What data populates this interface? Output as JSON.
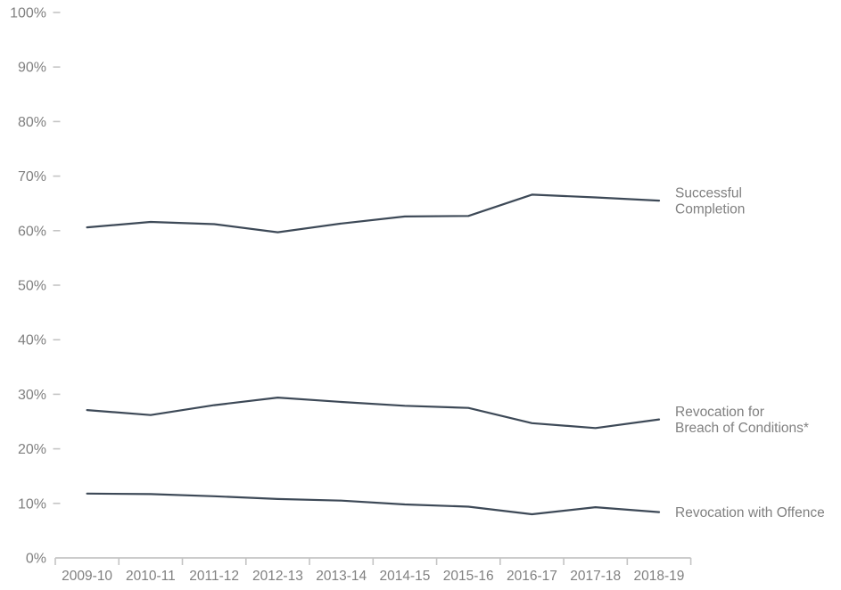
{
  "chart_data": {
    "type": "line",
    "title": "",
    "xlabel": "",
    "ylabel": "",
    "categories": [
      "2009-10",
      "2010-11",
      "2011-12",
      "2012-13",
      "2013-14",
      "2014-15",
      "2015-16",
      "2016-17",
      "2017-18",
      "2018-19"
    ],
    "series": [
      {
        "name": "Successful Completion",
        "label_lines": [
          "Successful",
          "Completion"
        ],
        "values": [
          60.6,
          61.6,
          61.2,
          59.7,
          61.3,
          62.6,
          62.7,
          66.6,
          66.1,
          65.5
        ]
      },
      {
        "name": "Revocation for Breach of Conditions*",
        "label_lines": [
          "Revocation for",
          "Breach of Conditions*"
        ],
        "values": [
          27.1,
          26.2,
          28.0,
          29.4,
          28.6,
          27.9,
          27.5,
          24.7,
          23.8,
          25.4
        ]
      },
      {
        "name": "Revocation with Offence",
        "label_lines": [
          "Revocation with Offence"
        ],
        "values": [
          11.8,
          11.7,
          11.3,
          10.8,
          10.5,
          9.8,
          9.4,
          8.0,
          9.3,
          8.4
        ]
      }
    ],
    "y_axis": {
      "min": 0,
      "max": 100,
      "step": 10,
      "tick_labels": [
        "0%",
        "10%",
        "20%",
        "30%",
        "40%",
        "50%",
        "60%",
        "70%",
        "80%",
        "90%",
        "100%"
      ]
    },
    "legend_position": "right-of-line-end",
    "grid": false,
    "colors": {
      "line": "#3d4957",
      "axis": "#c4c4c4",
      "tick": "#c4c4c4",
      "label_text": "#808080"
    }
  }
}
